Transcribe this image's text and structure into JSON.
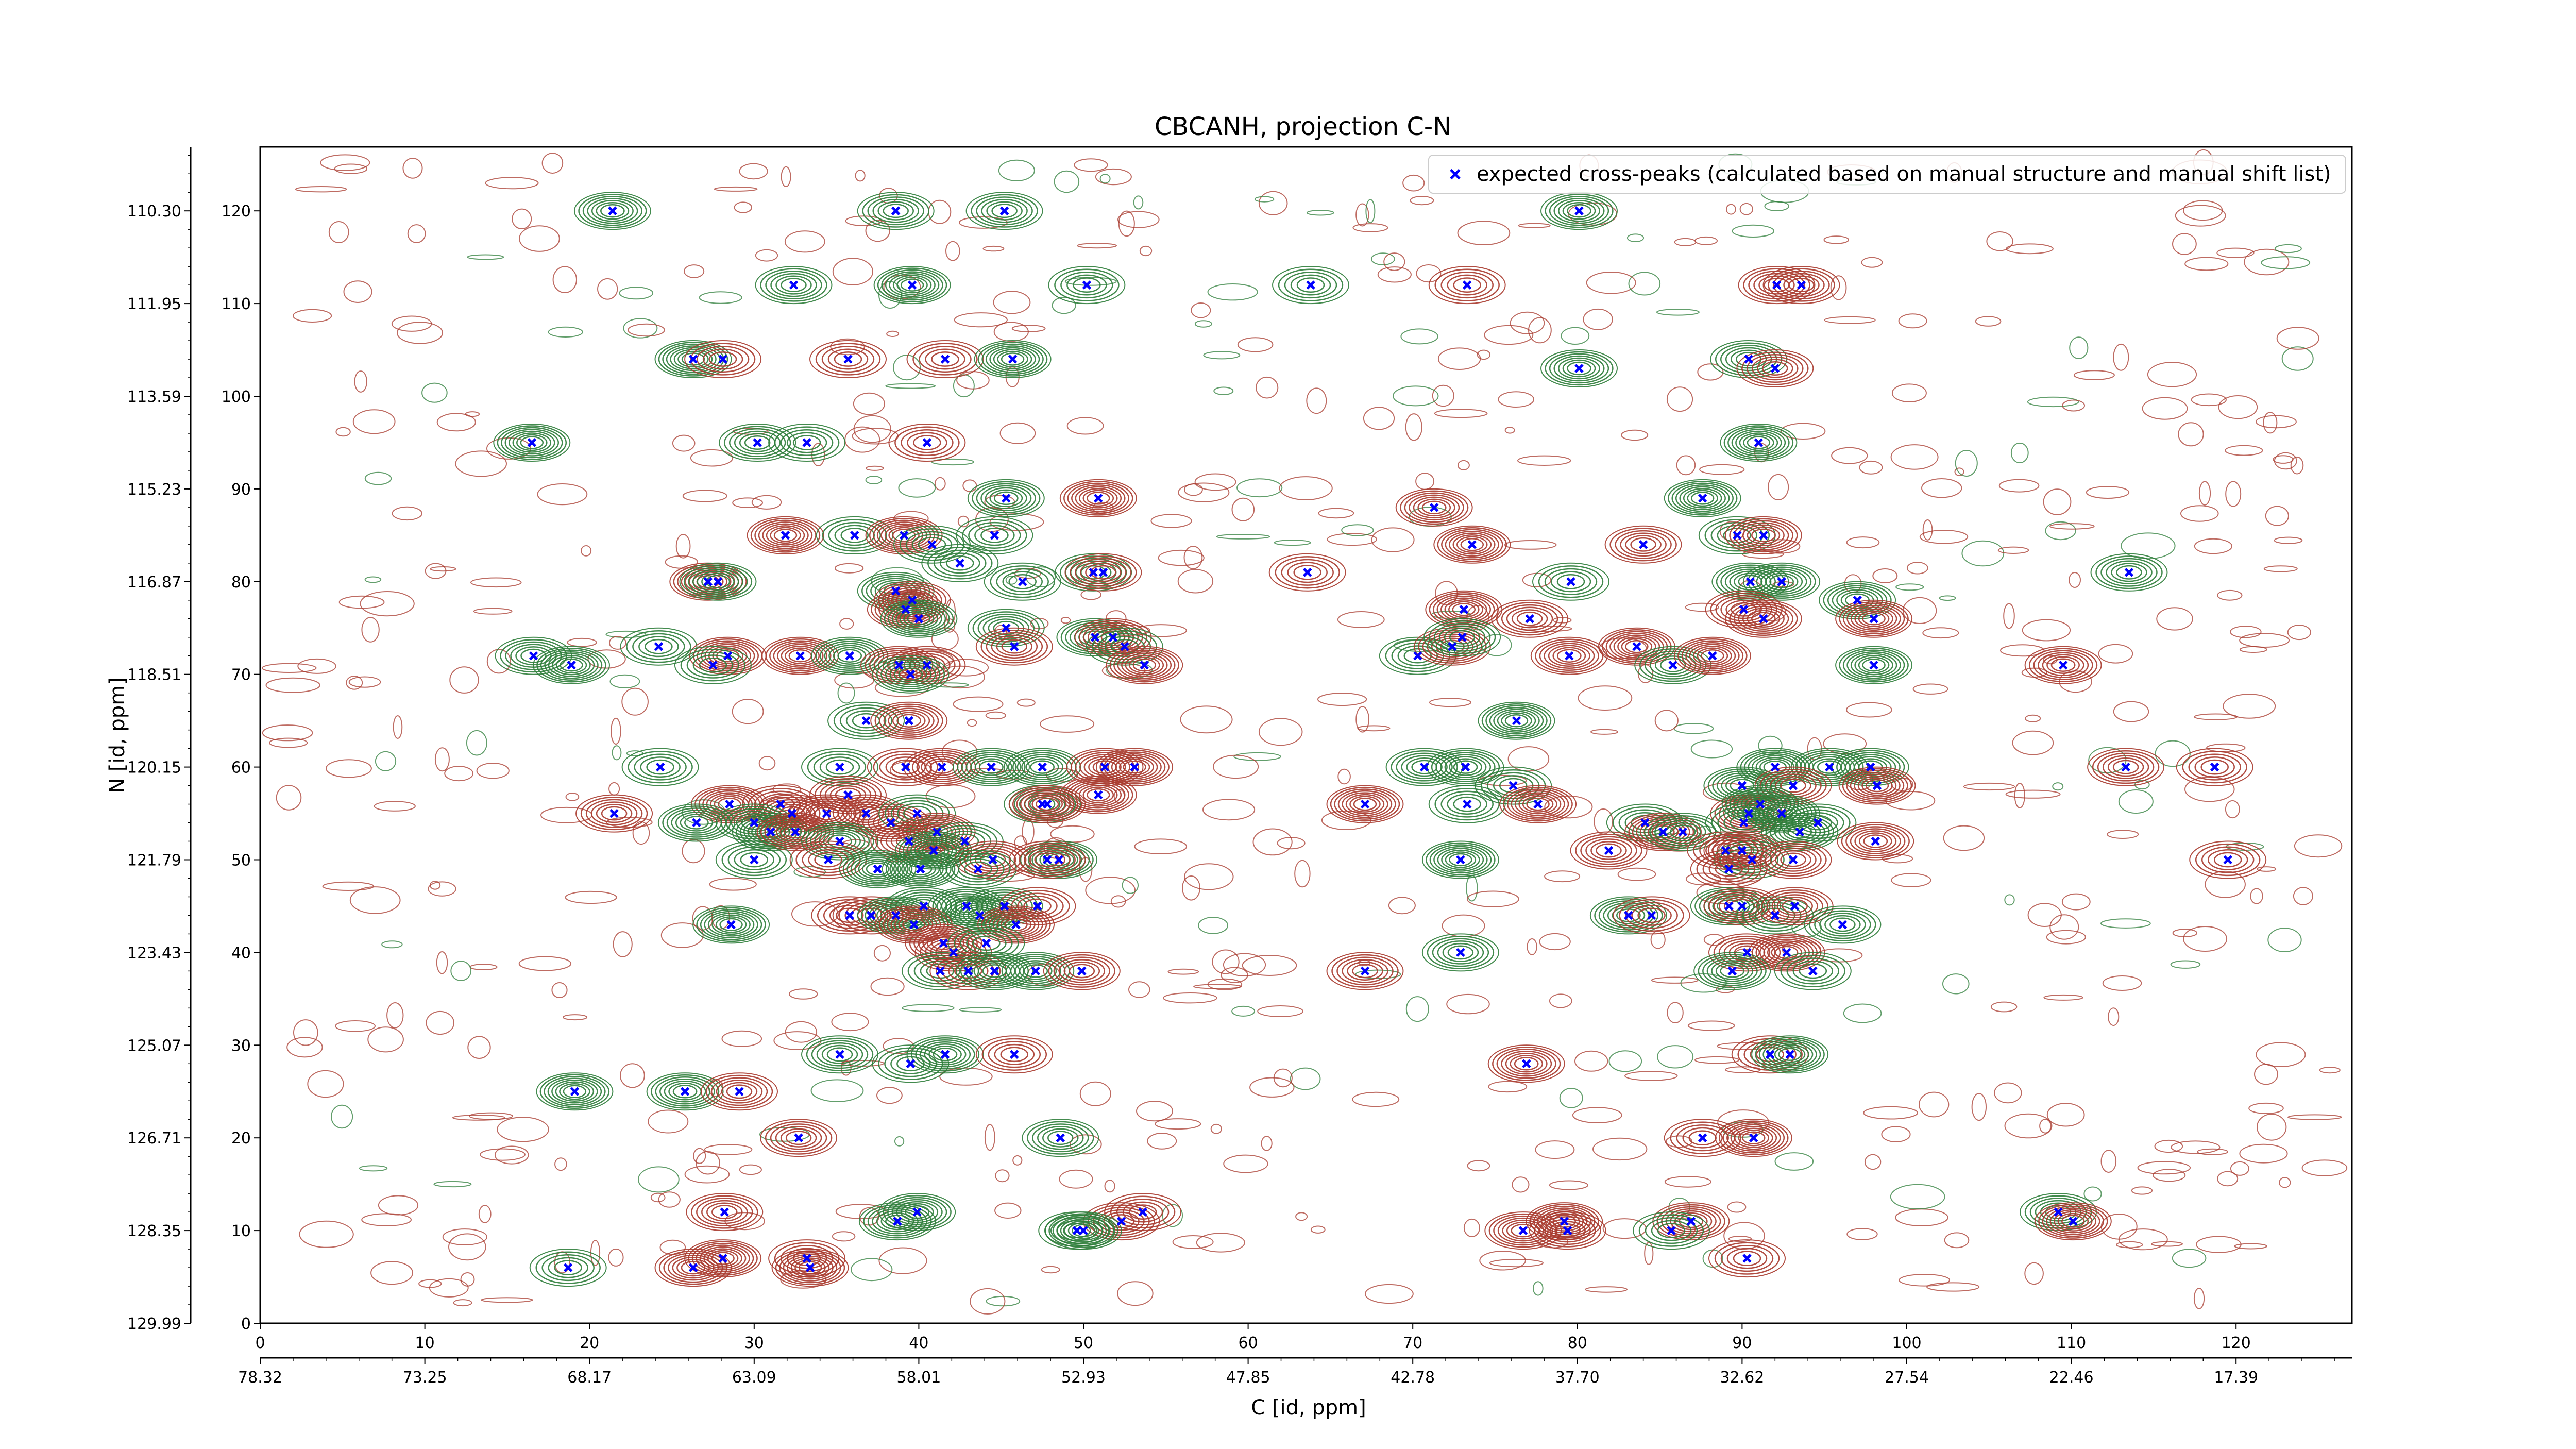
{
  "chart_data": {
    "type": "scatter",
    "title": "CBCANH, projection C-N",
    "xlabel": "C [id, ppm]",
    "ylabel": "N [id, ppm]",
    "xlim": [
      0,
      127.5
    ],
    "ylim": [
      0,
      127
    ],
    "x_index_ticks": [
      "0",
      "10",
      "20",
      "30",
      "40",
      "50",
      "60",
      "70",
      "80",
      "90",
      "100",
      "110",
      "120"
    ],
    "x_ppm_ticks": [
      "78.32",
      "73.25",
      "68.17",
      "63.09",
      "58.01",
      "52.93",
      "47.85",
      "42.78",
      "37.70",
      "32.62",
      "27.54",
      "22.46",
      "17.39"
    ],
    "y_index_ticks": [
      "0",
      "10",
      "20",
      "30",
      "40",
      "50",
      "60",
      "70",
      "80",
      "90",
      "100",
      "110",
      "120"
    ],
    "y_ppm_ticks": [
      "129.99",
      "128.35",
      "126.71",
      "125.07",
      "123.43",
      "121.79",
      "120.15",
      "118.51",
      "116.87",
      "115.23",
      "113.59",
      "111.95",
      "110.30"
    ],
    "legend": {
      "label": "expected cross-peaks (calculated based on manual structure and manual shift list)",
      "placement": "top-right"
    },
    "colors": {
      "negative_contours": "#2e7d3a",
      "positive_contours": "#a83a2e",
      "markers": "#0000ff"
    },
    "series": [
      {
        "name": "expected cross-peaks (calculated based on manual structure and manual shift list)",
        "points": [
          [
            21.4,
            120
          ],
          [
            38.6,
            120
          ],
          [
            45.2,
            120
          ],
          [
            80.1,
            120
          ],
          [
            32.4,
            112
          ],
          [
            39.6,
            112
          ],
          [
            50.2,
            112
          ],
          [
            63.8,
            112
          ],
          [
            73.3,
            112
          ],
          [
            92.1,
            112
          ],
          [
            93.6,
            112
          ],
          [
            26.3,
            104
          ],
          [
            28.1,
            104
          ],
          [
            35.7,
            104
          ],
          [
            41.6,
            104
          ],
          [
            45.7,
            104
          ],
          [
            80.1,
            103
          ],
          [
            90.4,
            104
          ],
          [
            92.0,
            103
          ],
          [
            16.5,
            95
          ],
          [
            30.2,
            95
          ],
          [
            33.2,
            95
          ],
          [
            40.5,
            95
          ],
          [
            91.0,
            95
          ],
          [
            45.3,
            89
          ],
          [
            50.9,
            89
          ],
          [
            71.3,
            88
          ],
          [
            87.6,
            89
          ],
          [
            31.9,
            85
          ],
          [
            36.1,
            85
          ],
          [
            39.1,
            85
          ],
          [
            40.8,
            84
          ],
          [
            44.6,
            85
          ],
          [
            73.6,
            84
          ],
          [
            84.0,
            84
          ],
          [
            89.7,
            85
          ],
          [
            91.3,
            85
          ],
          [
            27.2,
            80
          ],
          [
            27.8,
            80
          ],
          [
            42.5,
            82
          ],
          [
            46.3,
            80
          ],
          [
            50.6,
            81
          ],
          [
            51.2,
            81
          ],
          [
            63.6,
            81
          ],
          [
            79.6,
            80
          ],
          [
            90.5,
            80
          ],
          [
            92.4,
            80
          ],
          [
            113.5,
            81
          ],
          [
            38.6,
            79
          ],
          [
            39.6,
            78
          ],
          [
            39.2,
            77
          ],
          [
            40.0,
            76
          ],
          [
            45.3,
            75
          ],
          [
            73.1,
            77
          ],
          [
            77.1,
            76
          ],
          [
            90.1,
            77
          ],
          [
            91.3,
            76
          ],
          [
            97.0,
            78
          ],
          [
            98.0,
            76
          ],
          [
            16.6,
            72
          ],
          [
            24.2,
            73
          ],
          [
            28.4,
            72
          ],
          [
            32.8,
            72
          ],
          [
            40.5,
            71
          ],
          [
            45.8,
            73
          ],
          [
            50.7,
            74
          ],
          [
            51.8,
            74
          ],
          [
            52.5,
            73
          ],
          [
            53.7,
            71
          ],
          [
            70.3,
            72
          ],
          [
            72.4,
            73
          ],
          [
            73.0,
            74
          ],
          [
            79.5,
            72
          ],
          [
            83.6,
            73
          ],
          [
            85.8,
            71
          ],
          [
            88.2,
            72
          ],
          [
            98.0,
            71
          ],
          [
            109.5,
            71
          ],
          [
            18.9,
            71
          ],
          [
            27.5,
            71
          ],
          [
            35.8,
            72
          ],
          [
            38.8,
            71
          ],
          [
            39.5,
            70
          ],
          [
            36.8,
            65
          ],
          [
            39.4,
            65
          ],
          [
            76.3,
            65
          ],
          [
            24.3,
            60
          ],
          [
            35.2,
            60
          ],
          [
            39.2,
            60
          ],
          [
            41.4,
            60
          ],
          [
            44.4,
            60
          ],
          [
            47.5,
            60
          ],
          [
            51.3,
            60
          ],
          [
            53.1,
            60
          ],
          [
            70.7,
            60
          ],
          [
            73.2,
            60
          ],
          [
            92.0,
            60
          ],
          [
            95.3,
            60
          ],
          [
            97.8,
            60
          ],
          [
            113.3,
            60
          ],
          [
            118.7,
            60
          ],
          [
            35.7,
            57
          ],
          [
            50.9,
            57
          ],
          [
            76.1,
            58
          ],
          [
            90.0,
            58
          ],
          [
            93.1,
            58
          ],
          [
            98.2,
            58
          ],
          [
            28.5,
            56
          ],
          [
            31.6,
            56
          ],
          [
            32.3,
            55
          ],
          [
            34.4,
            55
          ],
          [
            36.8,
            55
          ],
          [
            38.3,
            54
          ],
          [
            39.9,
            55
          ],
          [
            47.5,
            56
          ],
          [
            47.8,
            56
          ],
          [
            67.1,
            56
          ],
          [
            73.3,
            56
          ],
          [
            77.6,
            56
          ],
          [
            84.1,
            54
          ],
          [
            90.4,
            55
          ],
          [
            91.1,
            56
          ],
          [
            92.4,
            55
          ],
          [
            21.5,
            55
          ],
          [
            26.5,
            54
          ],
          [
            30.0,
            54
          ],
          [
            31.0,
            53
          ],
          [
            32.5,
            53
          ],
          [
            41.1,
            53
          ],
          [
            42.8,
            52
          ],
          [
            85.2,
            53
          ],
          [
            86.4,
            53
          ],
          [
            90.1,
            54
          ],
          [
            93.5,
            53
          ],
          [
            94.6,
            54
          ],
          [
            35.2,
            52
          ],
          [
            39.4,
            52
          ],
          [
            40.9,
            51
          ],
          [
            44.5,
            50
          ],
          [
            48.5,
            50
          ],
          [
            90.0,
            51
          ],
          [
            90.6,
            50
          ],
          [
            93.1,
            50
          ],
          [
            81.9,
            51
          ],
          [
            89.0,
            51
          ],
          [
            98.1,
            52
          ],
          [
            30.0,
            50
          ],
          [
            34.5,
            50
          ],
          [
            37.5,
            49
          ],
          [
            40.1,
            49
          ],
          [
            43.6,
            49
          ],
          [
            47.8,
            50
          ],
          [
            72.9,
            50
          ],
          [
            89.2,
            49
          ],
          [
            119.5,
            50
          ],
          [
            40.3,
            45
          ],
          [
            42.9,
            45
          ],
          [
            45.2,
            45
          ],
          [
            47.2,
            45
          ],
          [
            89.2,
            45
          ],
          [
            90.0,
            45
          ],
          [
            92.0,
            44
          ],
          [
            93.2,
            45
          ],
          [
            35.8,
            44
          ],
          [
            37.1,
            44
          ],
          [
            38.6,
            44
          ],
          [
            39.7,
            43
          ],
          [
            43.7,
            44
          ],
          [
            45.9,
            43
          ],
          [
            83.1,
            44
          ],
          [
            84.5,
            44
          ],
          [
            96.1,
            43
          ],
          [
            28.6,
            43
          ],
          [
            41.5,
            41
          ],
          [
            42.1,
            40
          ],
          [
            44.1,
            41
          ],
          [
            72.9,
            40
          ],
          [
            90.3,
            40
          ],
          [
            92.7,
            40
          ],
          [
            41.3,
            38
          ],
          [
            43.0,
            38
          ],
          [
            44.6,
            38
          ],
          [
            47.1,
            38
          ],
          [
            49.9,
            38
          ],
          [
            67.1,
            38
          ],
          [
            89.4,
            38
          ],
          [
            94.3,
            38
          ],
          [
            35.2,
            29
          ],
          [
            39.5,
            28
          ],
          [
            41.6,
            29
          ],
          [
            45.8,
            29
          ],
          [
            76.9,
            28
          ],
          [
            91.7,
            29
          ],
          [
            92.9,
            29
          ],
          [
            19.1,
            25
          ],
          [
            25.8,
            25
          ],
          [
            29.1,
            25
          ],
          [
            32.7,
            20
          ],
          [
            48.6,
            20
          ],
          [
            87.6,
            20
          ],
          [
            90.7,
            20
          ],
          [
            28.2,
            12
          ],
          [
            39.9,
            12
          ],
          [
            52.3,
            11
          ],
          [
            53.6,
            12
          ],
          [
            79.2,
            11
          ],
          [
            86.9,
            11
          ],
          [
            109.2,
            12
          ],
          [
            38.7,
            11
          ],
          [
            49.6,
            10
          ],
          [
            50.0,
            10
          ],
          [
            76.7,
            10
          ],
          [
            79.4,
            10
          ],
          [
            85.7,
            10
          ],
          [
            110.1,
            11
          ],
          [
            18.7,
            6
          ],
          [
            26.3,
            6
          ],
          [
            28.1,
            7
          ],
          [
            33.2,
            7
          ],
          [
            33.4,
            6
          ],
          [
            90.3,
            7
          ]
        ]
      }
    ]
  }
}
